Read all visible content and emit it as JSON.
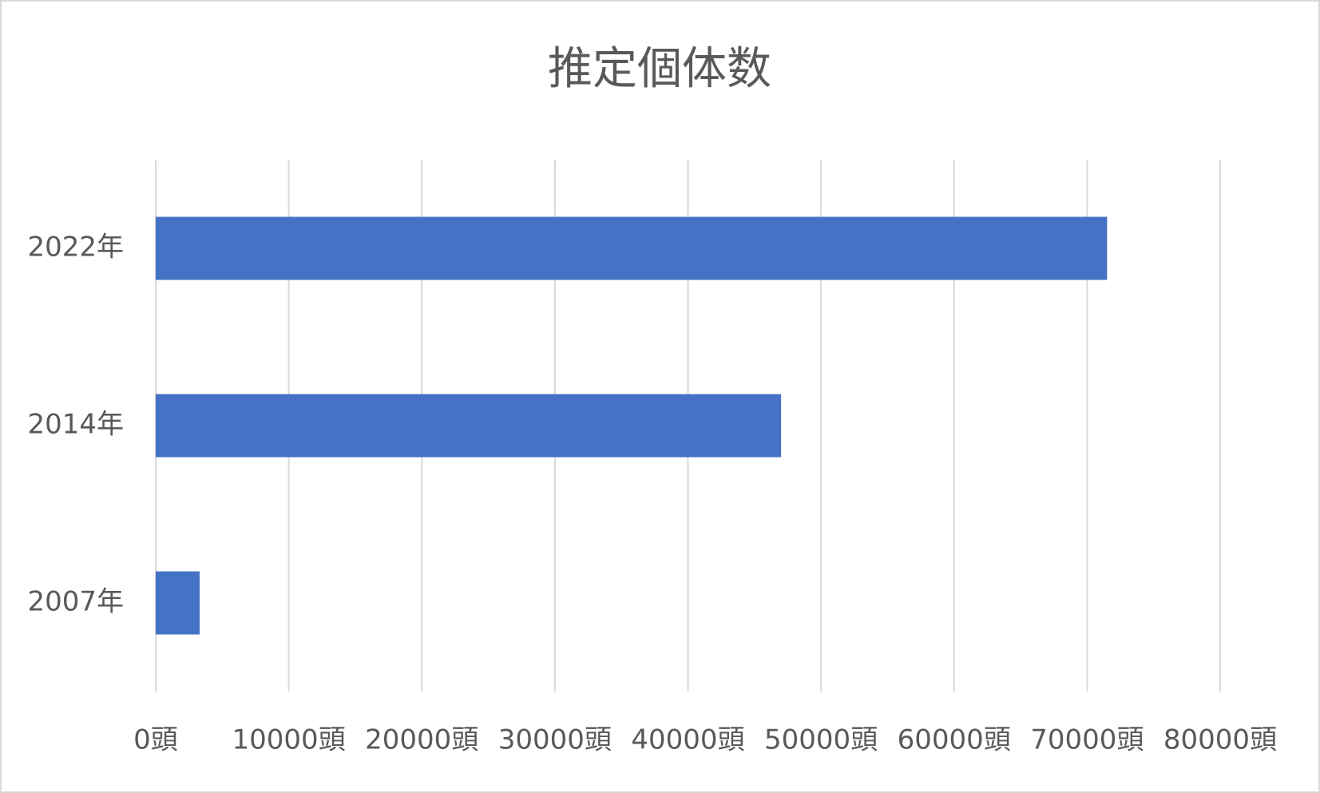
{
  "chart_data": {
    "type": "barh",
    "title": "推定個体数",
    "categories": [
      "2022年",
      "2014年",
      "2007年"
    ],
    "values": [
      71500,
      47000,
      3300
    ],
    "color": "#4472c4",
    "xlim": [
      0,
      80000
    ],
    "xticks": [
      {
        "value": 0,
        "label": "0頭"
      },
      {
        "value": 10000,
        "label": "10000頭"
      },
      {
        "value": 20000,
        "label": "20000頭"
      },
      {
        "value": 30000,
        "label": "30000頭"
      },
      {
        "value": 40000,
        "label": "40000頭"
      },
      {
        "value": 50000,
        "label": "50000頭"
      },
      {
        "value": 60000,
        "label": "60000頭"
      },
      {
        "value": 70000,
        "label": "70000頭"
      },
      {
        "value": 80000,
        "label": "80000頭"
      }
    ],
    "grid": true
  }
}
